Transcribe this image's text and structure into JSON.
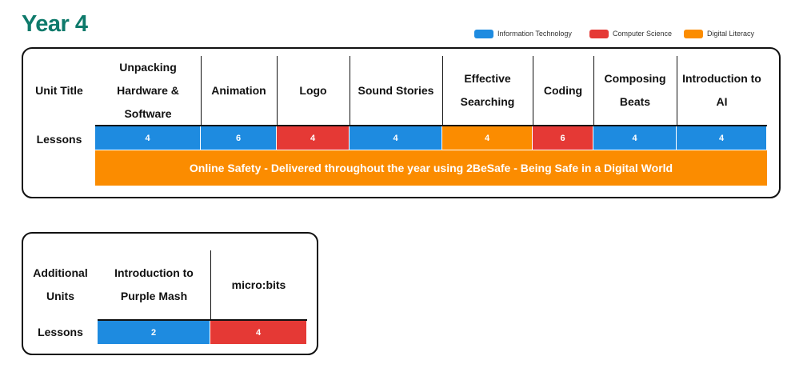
{
  "title": "Year 4",
  "colors": {
    "it": "#1e8be0",
    "cs": "#e53935",
    "dl": "#fb8c00",
    "title": "#0e7a6b"
  },
  "legend": [
    {
      "label": "Information Technology",
      "key": "it"
    },
    {
      "label": "Computer Science",
      "key": "cs"
    },
    {
      "label": "Digital Literacy",
      "key": "dl"
    }
  ],
  "main": {
    "unit_title_label": "Unit Title",
    "lessons_label": "Lessons",
    "units": [
      {
        "title": "Unpacking Hardware & Software",
        "lessons": "4",
        "strand": "it"
      },
      {
        "title": "Animation",
        "lessons": "6",
        "strand": "it"
      },
      {
        "title": "Logo",
        "lessons": "4",
        "strand": "cs"
      },
      {
        "title": "Sound Stories",
        "lessons": "4",
        "strand": "it"
      },
      {
        "title": "Effective Searching",
        "lessons": "4",
        "strand": "dl"
      },
      {
        "title": "Coding",
        "lessons": "6",
        "strand": "cs"
      },
      {
        "title": "Composing Beats",
        "lessons": "4",
        "strand": "it"
      },
      {
        "title": "Introduction to AI",
        "lessons": "4",
        "strand": "it"
      }
    ],
    "banner": "Online Safety - Delivered throughout the year using 2BeSafe - Being Safe in a Digital World"
  },
  "additional": {
    "label": "Additional Units",
    "lessons_label": "Lessons",
    "units": [
      {
        "title": "Introduction to Purple Mash",
        "lessons": "2",
        "strand": "it"
      },
      {
        "title": "micro:bits",
        "lessons": "4",
        "strand": "cs"
      }
    ]
  }
}
